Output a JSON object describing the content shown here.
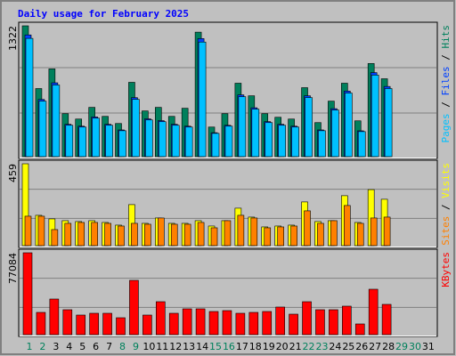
{
  "title": "Daily usage for February 2025",
  "legend_separator": " / ",
  "categories": [
    "1",
    "2",
    "3",
    "4",
    "5",
    "6",
    "7",
    "8",
    "9",
    "10",
    "11",
    "12",
    "13",
    "14",
    "15",
    "16",
    "17",
    "18",
    "19",
    "20",
    "21",
    "22",
    "23",
    "24",
    "25",
    "26",
    "27",
    "28",
    "29",
    "30",
    "31"
  ],
  "category_colors": [
    "#00805c",
    "#00805c",
    "#000000",
    "#000000",
    "#000000",
    "#000000",
    "#000000",
    "#00805c",
    "#00805c",
    "#000000",
    "#000000",
    "#000000",
    "#000000",
    "#000000",
    "#00805c",
    "#00805c",
    "#000000",
    "#000000",
    "#000000",
    "#000000",
    "#000000",
    "#00805c",
    "#00805c",
    "#000000",
    "#000000",
    "#000000",
    "#000000",
    "#000000",
    "#00805c",
    "#00805c",
    "#000000"
  ],
  "chart_data": [
    {
      "type": "bar",
      "ylim": [
        0,
        1322
      ],
      "yticks": [
        1322
      ],
      "series": [
        {
          "name": "Hits",
          "color": "#00805c",
          "values": [
            1322,
            688,
            887,
            434,
            380,
            498,
            407,
            335,
            751,
            462,
            498,
            407,
            489,
            1258,
            299,
            434,
            742,
            615,
            434,
            398,
            380,
            697,
            344,
            561,
            742,
            362,
            941,
            787,
            null,
            null,
            null
          ]
        },
        {
          "name": "Files",
          "color": "#0040ff",
          "values": [
            1230,
            578,
            746,
            327,
            308,
            401,
            327,
            270,
            596,
            382,
            364,
            327,
            308,
            1193,
            242,
            317,
            624,
            494,
            354,
            327,
            308,
            615,
            270,
            485,
            662,
            261,
            849,
            709,
            null,
            null,
            null
          ]
        },
        {
          "name": "Pages",
          "color": "#00c0ff",
          "values": [
            1195,
            561,
            724,
            317,
            299,
            389,
            317,
            262,
            579,
            371,
            353,
            317,
            299,
            1158,
            235,
            308,
            606,
            480,
            344,
            317,
            299,
            597,
            262,
            471,
            643,
            253,
            824,
            688,
            null,
            null,
            null
          ]
        }
      ]
    },
    {
      "type": "bar",
      "ylim": [
        0,
        459
      ],
      "yticks": [
        459
      ],
      "series": [
        {
          "name": "Visits",
          "color": "#ffff00",
          "values": [
            459,
            170,
            150,
            140,
            135,
            140,
            130,
            115,
            230,
            125,
            155,
            125,
            125,
            140,
            110,
            140,
            210,
            160,
            105,
            110,
            115,
            245,
            135,
            140,
            280,
            130,
            314,
            260,
            null,
            null,
            null
          ]
        },
        {
          "name": "Sites",
          "color": "#ff8000",
          "values": [
            165,
            165,
            90,
            125,
            130,
            130,
            125,
            110,
            125,
            120,
            155,
            120,
            120,
            130,
            100,
            140,
            170,
            155,
            100,
            105,
            110,
            195,
            125,
            140,
            225,
            125,
            155,
            160,
            null,
            null,
            null
          ]
        }
      ]
    },
    {
      "type": "bar",
      "ylim": [
        0,
        77084
      ],
      "yticks": [
        77084
      ],
      "series": [
        {
          "name": "KBytes",
          "color": "#ff0000",
          "values": [
            77084,
            20950,
            33520,
            23460,
            18440,
            20110,
            20110,
            15920,
            51120,
            18440,
            31010,
            20110,
            24300,
            24300,
            21790,
            22630,
            20110,
            20950,
            21790,
            25980,
            19270,
            31010,
            23460,
            23460,
            26820,
            10060,
            42740,
            28490,
            null,
            null,
            null
          ]
        }
      ]
    }
  ]
}
